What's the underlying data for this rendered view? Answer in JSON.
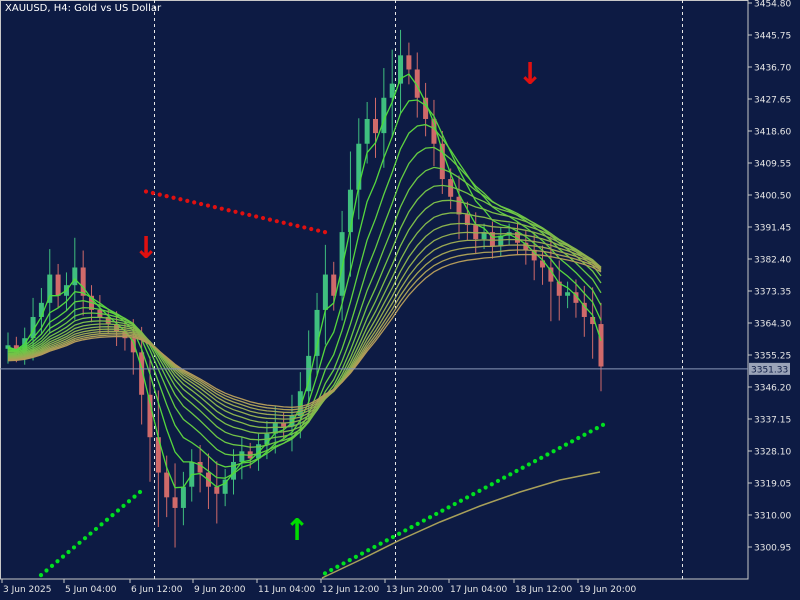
{
  "window": {
    "symbol_title": "XAUUSD, H4:  Gold vs US Dollar"
  },
  "colors": {
    "background": "#0d1b44",
    "axis": "#c8c8c8",
    "bull_candle": "#3fbf7f",
    "bear_candle": "#d06a6a",
    "ribbon_fast": "#4ddc3c",
    "ribbon_slow": "#b39a5a",
    "dots": "#00e020",
    "arrow_up": "#00dc00",
    "arrow_down": "#e01010",
    "price_line": "#8a98b8"
  },
  "price_axis": {
    "ticks": [
      "3454.80",
      "3445.75",
      "3436.70",
      "3427.65",
      "3418.60",
      "3409.55",
      "3400.50",
      "3391.45",
      "3382.40",
      "3373.35",
      "3364.30",
      "3355.25",
      "3346.20",
      "3337.15",
      "3328.10",
      "3319.05",
      "3310.00",
      "3300.95"
    ],
    "current_price": "3351.33"
  },
  "time_axis": {
    "ticks": [
      "3 Jun 2025",
      "5 Jun 04:00",
      "6 Jun 12:00",
      "9 Jun 20:00",
      "11 Jun 04:00",
      "12 Jun 12:00",
      "13 Jun 20:00",
      "17 Jun 04:00",
      "18 Jun 12:00",
      "19 Jun 20:00"
    ]
  },
  "markers": {
    "up_arrow": "↑",
    "down_arrow": "↓"
  },
  "icons": [
    "arrow-up-icon",
    "arrow-down-icon"
  ],
  "chart_data": {
    "type": "candlestick",
    "symbol": "XAUUSD",
    "timeframe": "H4",
    "ylim": [
      3291.9,
      3454.8
    ],
    "price_line": 3351.33,
    "period_separators": [
      "6 Jun",
      "13 Jun",
      "20 Jun"
    ],
    "down_arrows": [
      "6 Jun 12:00",
      "18 Jun"
    ],
    "up_arrows": [
      "11 Jun"
    ],
    "ribbon_count": 14,
    "trend_lines": [
      {
        "name": "red dotted",
        "from": {
          "time": "5 Jun 20:00",
          "price": 3401.5
        },
        "to": {
          "time": "12 Jun 04:00",
          "price": 3390.0
        }
      },
      {
        "name": "green dotted (lower)",
        "from": {
          "time": "3 Jun",
          "price": 3293.0
        },
        "to": {
          "time": "6 Jun 08:00",
          "price": 3316.5
        }
      },
      {
        "name": "green dotted (upper)",
        "from": {
          "time": "11 Jun 08:00",
          "price": 3293.5
        },
        "to": {
          "time": "19 Jun 20:00",
          "price": 3335.5
        }
      }
    ],
    "close_series": [
      3358,
      3356,
      3360,
      3366,
      3370,
      3378,
      3372,
      3375,
      3380,
      3372,
      3368,
      3366,
      3364,
      3362,
      3360,
      3356,
      3344,
      3332,
      3322,
      3315,
      3312,
      3318,
      3325,
      3322,
      3318,
      3316,
      3320,
      3325,
      3328,
      3326,
      3330,
      3333,
      3336,
      3335,
      3338,
      3345,
      3355,
      3368,
      3378,
      3372,
      3390,
      3402,
      3415,
      3422,
      3418,
      3428,
      3432,
      3440,
      3436,
      3428,
      3422,
      3415,
      3405,
      3400,
      3395,
      3392,
      3388,
      3390,
      3386,
      3389,
      3390,
      3387,
      3385,
      3382,
      3380,
      3376,
      3372,
      3373,
      3370,
      3366,
      3364,
      3352
    ]
  }
}
